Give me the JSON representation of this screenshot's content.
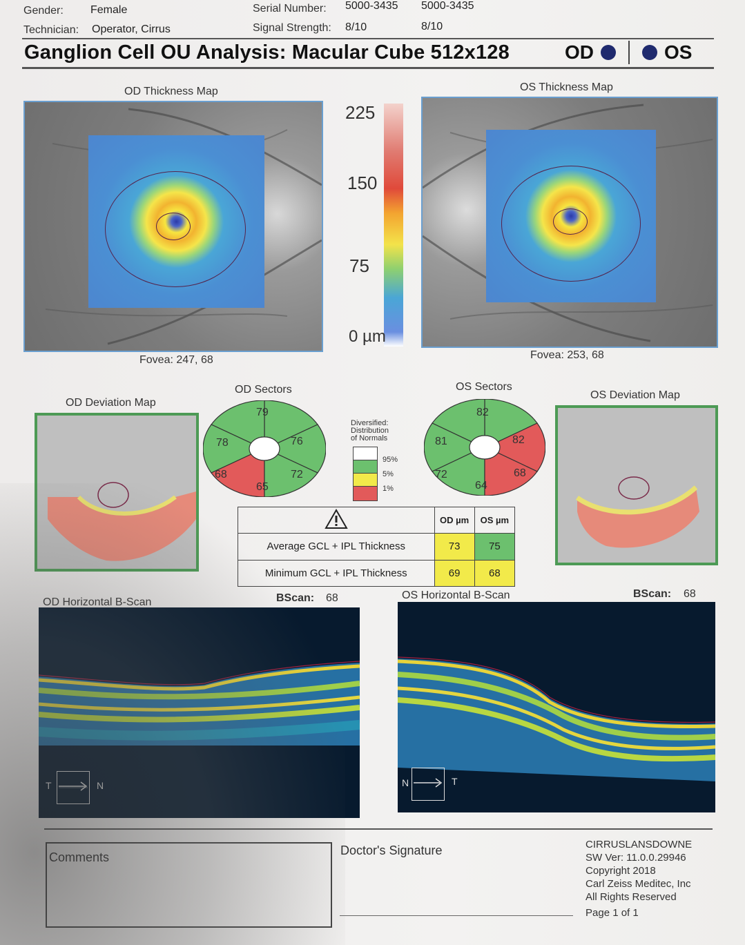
{
  "header": {
    "gender_label": "Gender:",
    "gender_value": "Female",
    "technician_label": "Technician:",
    "technician_value": "Operator, Cirrus",
    "serial_label": "Serial Number:",
    "serial_od": "5000-3435",
    "serial_os": "5000-3435",
    "signal_label": "Signal Strength:",
    "signal_od": "8/10",
    "signal_os": "8/10"
  },
  "title": "Ganglion Cell OU Analysis: Macular Cube 512x128",
  "eye_tags": {
    "od": "OD",
    "os": "OS"
  },
  "thickness_maps": {
    "od_title": "OD Thickness Map",
    "os_title": "OS Thickness Map",
    "od_fovea": "Fovea: 247, 68",
    "os_fovea": "Fovea: 253, 68"
  },
  "colorbar": {
    "v225": "225",
    "v150": "150",
    "v75": "75",
    "v0": "0 µm"
  },
  "sectors": {
    "od_title": "OD Sectors",
    "os_title": "OS Sectors",
    "od": {
      "top": "79",
      "upper_left": "78",
      "upper_right": "76",
      "lower_left": "68",
      "lower_right": "72",
      "bottom": "65"
    },
    "os": {
      "top": "82",
      "upper_left": "81",
      "upper_right": "82",
      "lower_left": "72",
      "lower_right": "68",
      "bottom": "64"
    }
  },
  "legend": {
    "title_line1": "Diversified:",
    "title_line2": "Distribution",
    "title_line3": "of Normals",
    "p95": "95%",
    "p5": "5%",
    "p1": "1%",
    "colors": {
      "white": "#ffffff",
      "green": "#6cc06e",
      "yellow": "#f2ea4a",
      "red": "#e25a5a"
    }
  },
  "deviation_maps": {
    "od_title": "OD Deviation Map",
    "os_title": "OS Deviation Map"
  },
  "results_table": {
    "warning_icon": "warning-triangle-icon",
    "col_od": "OD µm",
    "col_os": "OS µm",
    "rows": [
      {
        "label": "Average GCL + IPL Thickness",
        "od": "73",
        "os": "75"
      },
      {
        "label": "Minimum GCL + IPL Thickness",
        "od": "69",
        "os": "68"
      }
    ]
  },
  "bscans": {
    "od_title": "OD Horizontal B-Scan",
    "os_title": "OS Horizontal B-Scan",
    "bscan_label": "BScan:",
    "od_bscan": "68",
    "os_bscan": "68",
    "od_left": "T",
    "od_right": "N",
    "os_left": "N",
    "os_right": "T"
  },
  "footer": {
    "comments": "Comments",
    "signature": "Doctor's Signature",
    "device": "CIRRUSLANSDOWNE",
    "sw": "SW Ver: 11.0.0.29946",
    "copyright": "Copyright 2018",
    "company": "Carl Zeiss Meditec, Inc",
    "rights": "All Rights Reserved",
    "page": "Page 1 of 1"
  }
}
